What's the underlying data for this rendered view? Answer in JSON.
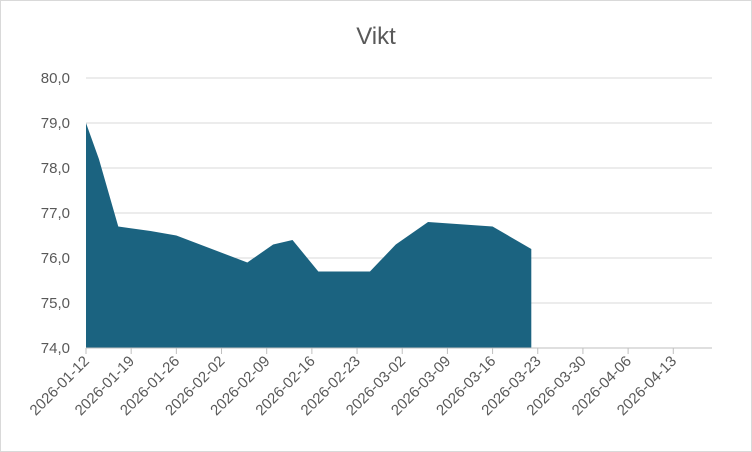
{
  "chart_data": {
    "type": "area",
    "title": "Vikt",
    "xlabel": "",
    "ylabel": "",
    "ylim": [
      74.0,
      80.0
    ],
    "y_ticks": [
      "74,0",
      "75,0",
      "76,0",
      "77,0",
      "78,0",
      "79,0",
      "80,0"
    ],
    "x_ticks": [
      "2026-01-12",
      "2026-01-19",
      "2026-01-26",
      "2026-02-02",
      "2026-02-09",
      "2026-02-16",
      "2026-02-23",
      "2026-03-02",
      "2026-03-09",
      "2026-03-16",
      "2026-03-23",
      "2026-03-30",
      "2026-04-06",
      "2026-04-13"
    ],
    "x_range": [
      "2026-01-12",
      "2026-04-19"
    ],
    "grid": true,
    "legend": "none",
    "color": "#1b6380",
    "series": [
      {
        "points": [
          {
            "x": "2026-01-12",
            "y": 79.0
          },
          {
            "x": "2026-01-14",
            "y": 78.2
          },
          {
            "x": "2026-01-17",
            "y": 76.7
          },
          {
            "x": "2026-01-22",
            "y": 76.6
          },
          {
            "x": "2026-01-26",
            "y": 76.5
          },
          {
            "x": "2026-02-06",
            "y": 75.9
          },
          {
            "x": "2026-02-10",
            "y": 76.3
          },
          {
            "x": "2026-02-13",
            "y": 76.4
          },
          {
            "x": "2026-02-17",
            "y": 75.7
          },
          {
            "x": "2026-02-25",
            "y": 75.7
          },
          {
            "x": "2026-03-01",
            "y": 76.3
          },
          {
            "x": "2026-03-06",
            "y": 76.8
          },
          {
            "x": "2026-03-16",
            "y": 76.7
          },
          {
            "x": "2026-03-22",
            "y": 76.2
          }
        ]
      }
    ]
  }
}
